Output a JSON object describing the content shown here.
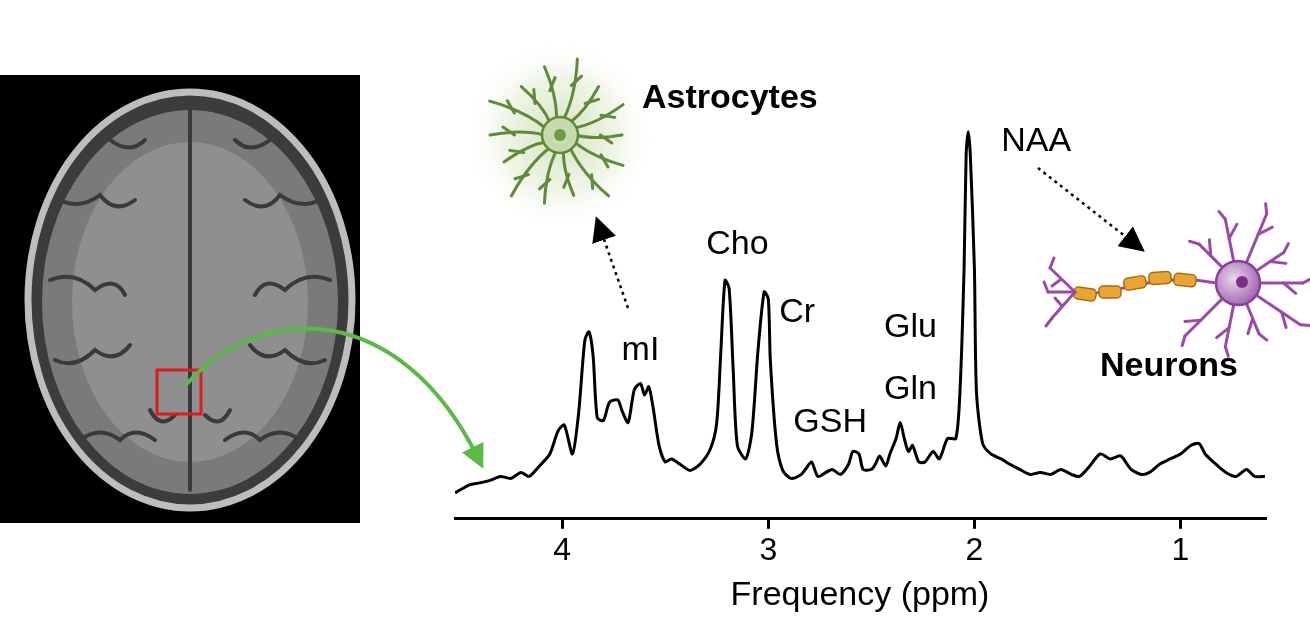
{
  "chart_data": {
    "type": "line",
    "x_label": "Frequency (ppm)",
    "x": [
      4.52,
      4.45,
      4.4,
      4.35,
      4.3,
      4.25,
      4.2,
      4.16,
      4.11,
      4.06,
      4.02,
      3.99,
      3.95,
      3.92,
      3.89,
      3.87,
      3.85,
      3.83,
      3.8,
      3.77,
      3.73,
      3.71,
      3.68,
      3.65,
      3.62,
      3.6,
      3.58,
      3.56,
      3.53,
      3.5,
      3.47,
      3.43,
      3.38,
      3.33,
      3.28,
      3.25,
      3.23,
      3.21,
      3.19,
      3.17,
      3.15,
      3.11,
      3.08,
      3.05,
      3.02,
      3.0,
      2.99,
      2.96,
      2.93,
      2.89,
      2.84,
      2.82,
      2.79,
      2.76,
      2.72,
      2.69,
      2.65,
      2.61,
      2.59,
      2.56,
      2.54,
      2.5,
      2.48,
      2.46,
      2.43,
      2.41,
      2.38,
      2.36,
      2.34,
      2.32,
      2.3,
      2.27,
      2.24,
      2.2,
      2.17,
      2.13,
      2.09,
      2.07,
      2.05,
      2.04,
      2.03,
      2.02,
      2.0,
      1.99,
      1.96,
      1.92,
      1.87,
      1.83,
      1.78,
      1.73,
      1.68,
      1.63,
      1.58,
      1.53,
      1.49,
      1.44,
      1.39,
      1.34,
      1.29,
      1.24,
      1.19,
      1.15,
      1.1,
      1.05,
      1.0,
      0.95,
      0.91,
      0.88,
      0.83,
      0.78,
      0.73,
      0.68,
      0.64,
      0.59
    ],
    "values": [
      5.2,
      6.8,
      7.2,
      7.7,
      8.5,
      8.1,
      9.3,
      8.5,
      10.6,
      13.0,
      17.6,
      18.8,
      13.0,
      21.3,
      35.8,
      37.5,
      32.7,
      20.3,
      19.7,
      23.4,
      23.8,
      21.7,
      19.3,
      25.9,
      27.1,
      24.8,
      26.5,
      22.6,
      14.7,
      11.4,
      12.0,
      11.0,
      9.7,
      11.0,
      14.1,
      19.3,
      33.7,
      47.8,
      46.2,
      29.6,
      14.7,
      12.0,
      17.2,
      33.7,
      45.5,
      44.1,
      31.7,
      15.1,
      9.7,
      8.1,
      8.9,
      9.9,
      11.4,
      8.5,
      9.3,
      9.9,
      8.9,
      11.0,
      13.5,
      13.0,
      9.9,
      9.9,
      11.0,
      12.6,
      10.6,
      13.0,
      16.1,
      19.3,
      16.1,
      13.5,
      14.7,
      11.4,
      11.4,
      13.5,
      12.0,
      16.1,
      16.1,
      25.5,
      50.3,
      73.1,
      77.6,
      73.1,
      50.3,
      25.5,
      15.1,
      13.0,
      12.0,
      11.0,
      9.9,
      8.9,
      9.3,
      8.9,
      9.9,
      8.9,
      8.5,
      10.6,
      13.0,
      12.0,
      12.6,
      9.9,
      8.9,
      9.3,
      11.0,
      12.0,
      13.0,
      14.7,
      15.1,
      13.0,
      11.0,
      9.3,
      8.5,
      9.9,
      8.5,
      8.5
    ],
    "color": "#000000",
    "xlim": [
      4.52,
      0.59
    ],
    "xticks": [
      4,
      3,
      2,
      1
    ],
    "ylim": [
      0,
      100
    ],
    "tick_labels": "x",
    "grid": false,
    "annotations": [
      {
        "text": "mI",
        "x": 3.62,
        "y": 33.7
      },
      {
        "text": "Cho",
        "x": 3.15,
        "y": 54.9
      },
      {
        "text": "Cr",
        "x": 2.86,
        "y": 41.4
      },
      {
        "text": "GSH",
        "x": 2.7,
        "y": 19.3
      },
      {
        "text": "Glu",
        "x": 2.31,
        "y": 38.3
      },
      {
        "text": "Gln",
        "x": 2.31,
        "y": 25.9
      },
      {
        "text": "NAA",
        "x": 1.7,
        "y": 75.6
      }
    ]
  },
  "cell_types": [
    "Astrocytes",
    "Neurons"
  ]
}
